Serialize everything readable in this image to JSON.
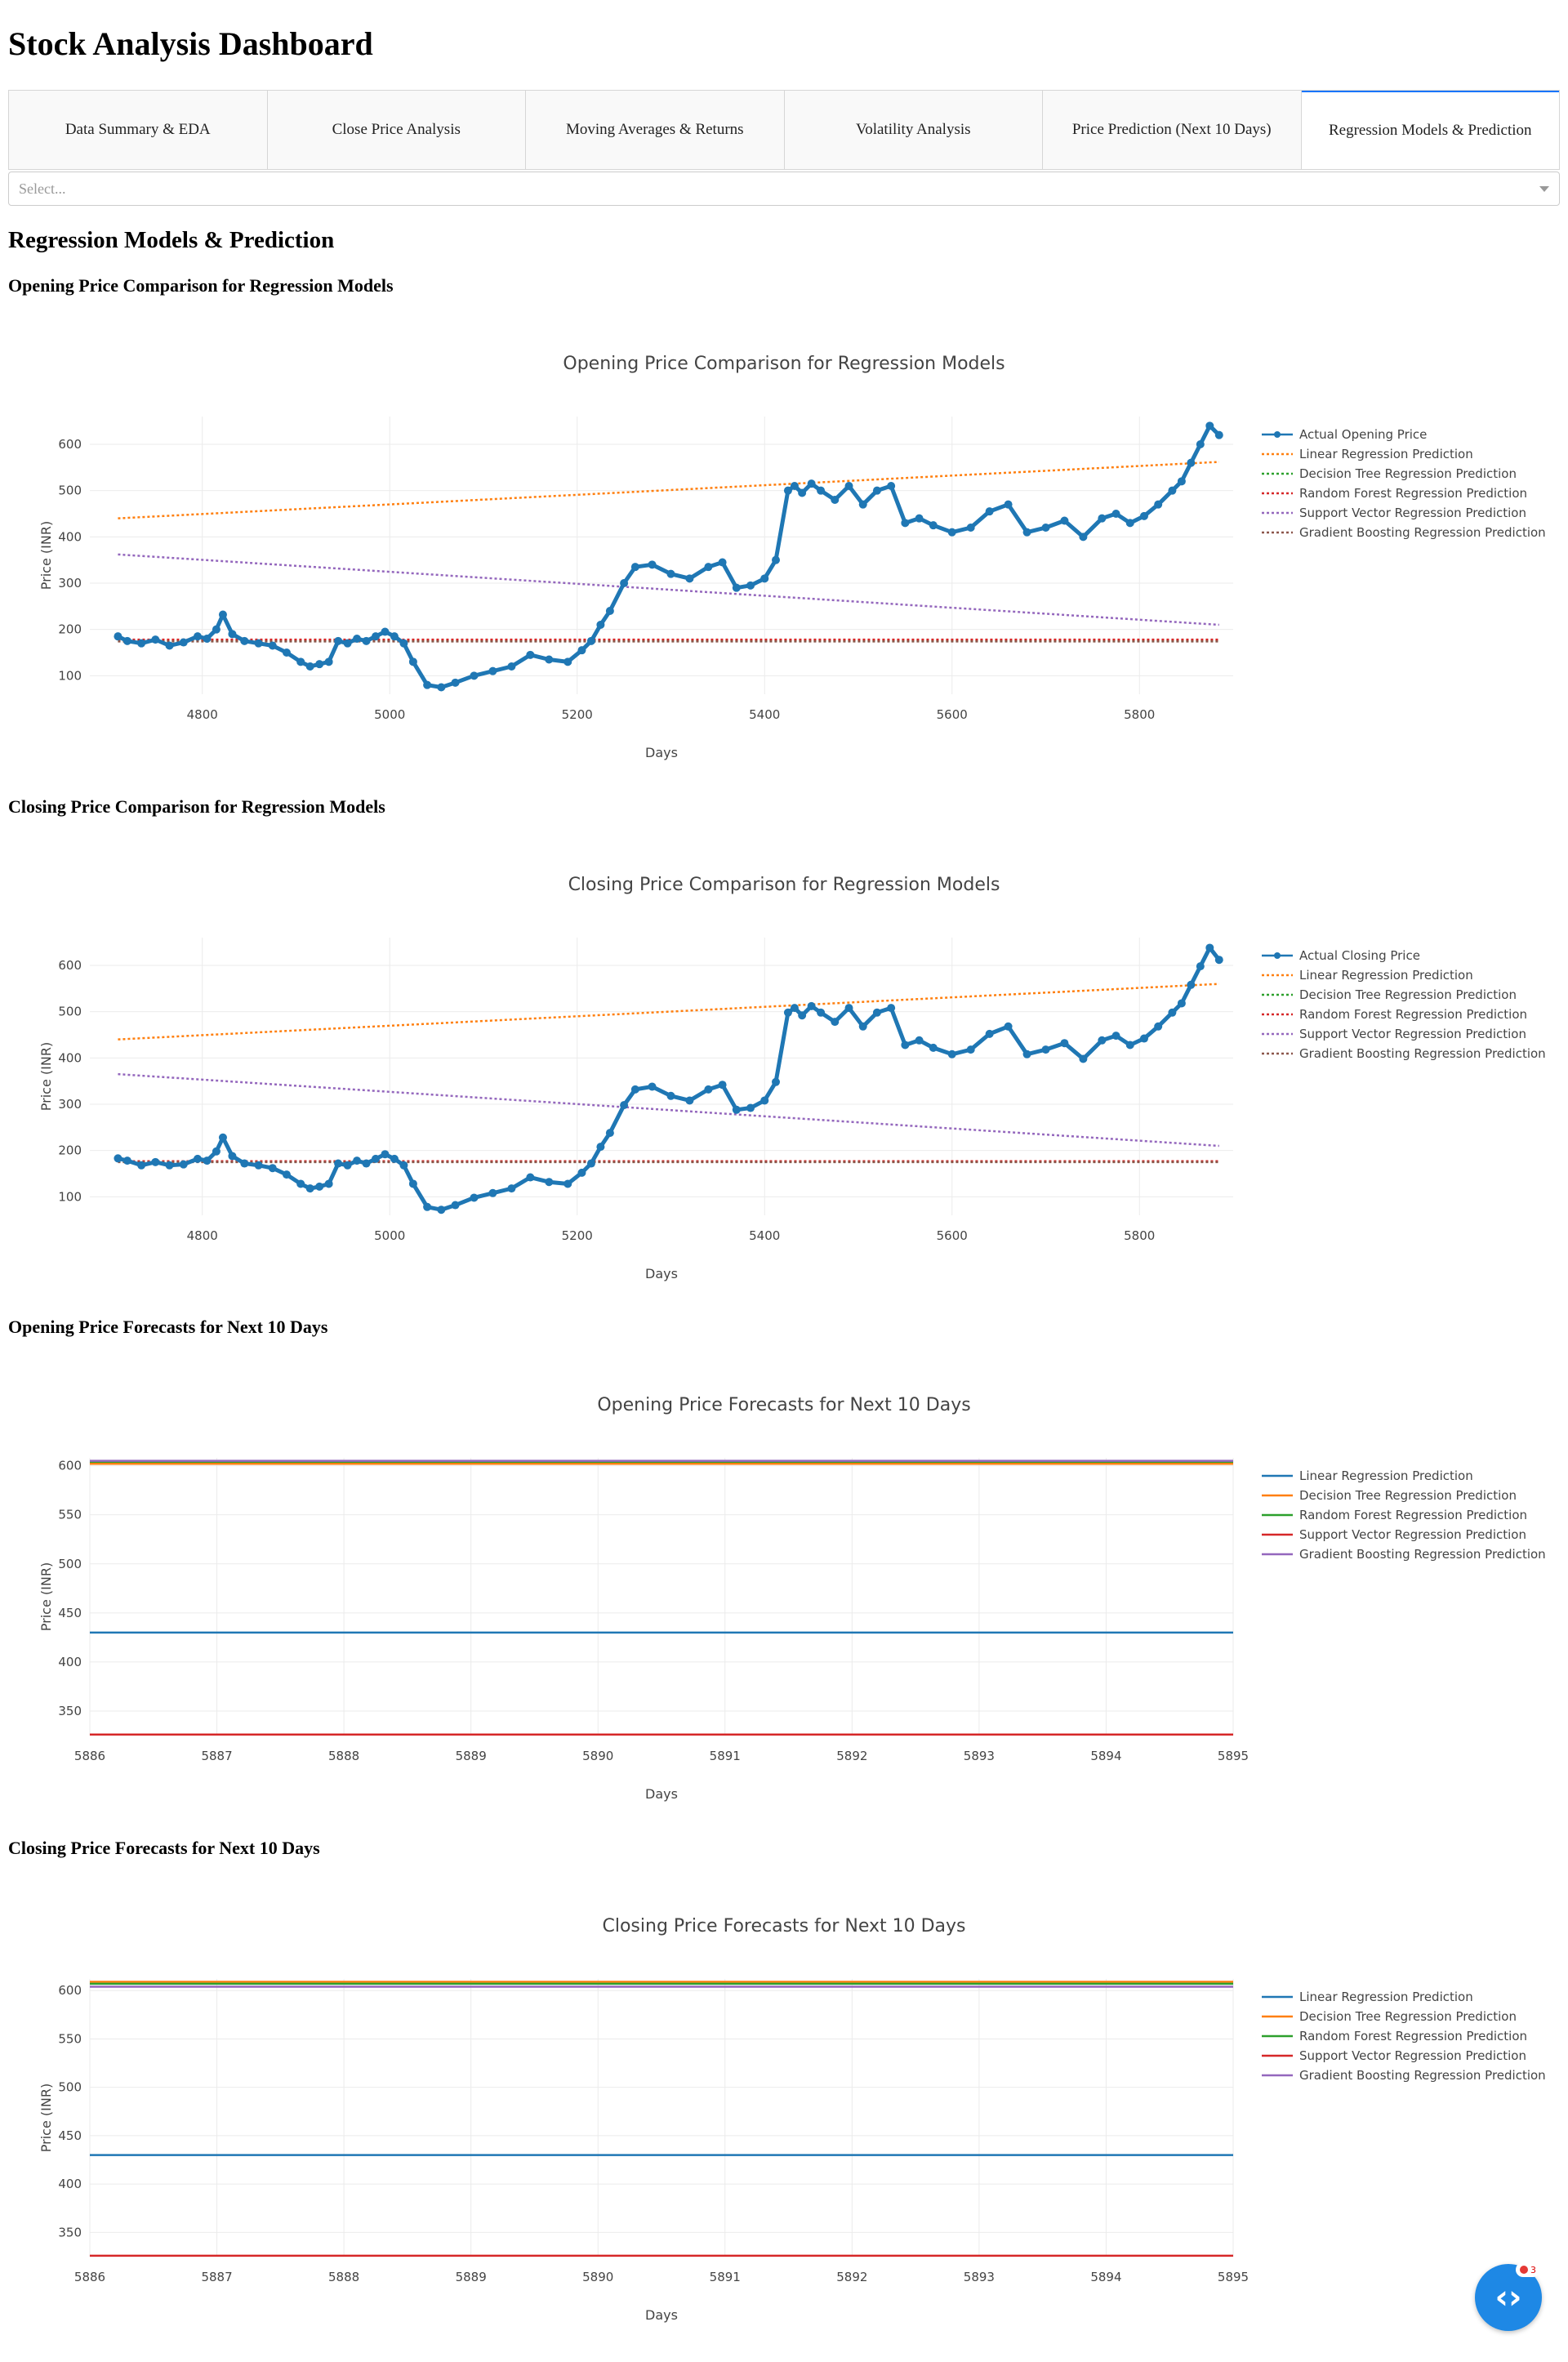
{
  "page": {
    "title": "Stock Analysis Dashboard",
    "tabs": [
      {
        "label": "Data Summary & EDA"
      },
      {
        "label": "Close Price Analysis"
      },
      {
        "label": "Moving Averages & Returns"
      },
      {
        "label": "Volatility Analysis"
      },
      {
        "label": "Price Prediction (Next 10 Days)"
      },
      {
        "label": "Regression Models & Prediction"
      }
    ],
    "selected_tab": 5,
    "dropdown": {
      "placeholder": "Select..."
    },
    "section_title": "Regression Models & Prediction",
    "chart_headings": [
      "Opening Price Comparison for Regression Models",
      "Closing Price Comparison for Regression Models",
      "Opening Price Forecasts for Next 10 Days",
      "Closing Price Forecasts for Next 10 Days"
    ],
    "fab": {
      "icon": "code-brackets-icon",
      "badge": "3"
    }
  },
  "chart_data": [
    {
      "type": "line",
      "title": "Opening Price Comparison for Regression Models",
      "xlabel": "Days",
      "ylabel": "Price (INR)",
      "xlim": [
        4680,
        5900
      ],
      "ylim": [
        60,
        660
      ],
      "xticks": [
        4800,
        5000,
        5200,
        5400,
        5600,
        5800
      ],
      "yticks": [
        100,
        200,
        300,
        400,
        500,
        600
      ],
      "grid": true,
      "legend_position": "top-right",
      "series": [
        {
          "name": "Actual Opening Price",
          "style": "markers+lines",
          "color": "#1f77b4",
          "x": [
            4710,
            4720,
            4735,
            4750,
            4765,
            4780,
            4795,
            4805,
            4815,
            4822,
            4832,
            4845,
            4860,
            4875,
            4890,
            4905,
            4915,
            4925,
            4935,
            4945,
            4955,
            4965,
            4975,
            4985,
            4995,
            5005,
            5015,
            5025,
            5040,
            5055,
            5070,
            5090,
            5110,
            5130,
            5150,
            5170,
            5190,
            5205,
            5215,
            5225,
            5235,
            5250,
            5262,
            5280,
            5300,
            5320,
            5340,
            5355,
            5370,
            5385,
            5400,
            5412,
            5425,
            5432,
            5440,
            5450,
            5460,
            5475,
            5490,
            5505,
            5520,
            5535,
            5550,
            5565,
            5580,
            5600,
            5620,
            5640,
            5660,
            5680,
            5700,
            5720,
            5740,
            5760,
            5775,
            5790,
            5805,
            5820,
            5835,
            5845,
            5855,
            5865,
            5875,
            5885
          ],
          "y": [
            185,
            175,
            170,
            178,
            165,
            172,
            185,
            180,
            200,
            232,
            190,
            175,
            170,
            165,
            150,
            130,
            120,
            125,
            130,
            175,
            170,
            180,
            175,
            185,
            195,
            185,
            170,
            130,
            80,
            75,
            85,
            100,
            110,
            120,
            145,
            135,
            130,
            155,
            175,
            210,
            240,
            300,
            335,
            340,
            320,
            310,
            335,
            345,
            290,
            295,
            310,
            350,
            500,
            510,
            495,
            515,
            500,
            480,
            510,
            470,
            500,
            510,
            430,
            440,
            425,
            410,
            420,
            455,
            470,
            410,
            420,
            435,
            400,
            440,
            450,
            430,
            445,
            470,
            500,
            520,
            560,
            600,
            640,
            620
          ]
        },
        {
          "name": "Linear Regression Prediction",
          "style": "dot",
          "color": "#ff7f0e",
          "x": [
            4710,
            5885
          ],
          "y": [
            440,
            562
          ]
        },
        {
          "name": "Decision Tree Regression Prediction",
          "style": "dot",
          "color": "#2ca02c",
          "x": [
            4710,
            5885
          ],
          "y": [
            176,
            176
          ]
        },
        {
          "name": "Random Forest Regression Prediction",
          "style": "dot",
          "color": "#d62728",
          "x": [
            4710,
            5885
          ],
          "y": [
            178,
            178
          ]
        },
        {
          "name": "Support Vector Regression Prediction",
          "style": "dot",
          "color": "#9467bd",
          "x": [
            4710,
            5885
          ],
          "y": [
            362,
            210
          ]
        },
        {
          "name": "Gradient Boosting Regression Prediction",
          "style": "dot",
          "color": "#8c564b",
          "x": [
            4710,
            5885
          ],
          "y": [
            174,
            174
          ]
        }
      ]
    },
    {
      "type": "line",
      "title": "Closing Price Comparison for Regression Models",
      "xlabel": "Days",
      "ylabel": "Price (INR)",
      "xlim": [
        4680,
        5900
      ],
      "ylim": [
        60,
        660
      ],
      "xticks": [
        4800,
        5000,
        5200,
        5400,
        5600,
        5800
      ],
      "yticks": [
        100,
        200,
        300,
        400,
        500,
        600
      ],
      "grid": true,
      "legend_position": "top-right",
      "series": [
        {
          "name": "Actual Closing Price",
          "style": "markers+lines",
          "color": "#1f77b4",
          "x": [
            4710,
            4720,
            4735,
            4750,
            4765,
            4780,
            4795,
            4805,
            4815,
            4822,
            4832,
            4845,
            4860,
            4875,
            4890,
            4905,
            4915,
            4925,
            4935,
            4945,
            4955,
            4965,
            4975,
            4985,
            4995,
            5005,
            5015,
            5025,
            5040,
            5055,
            5070,
            5090,
            5110,
            5130,
            5150,
            5170,
            5190,
            5205,
            5215,
            5225,
            5235,
            5250,
            5262,
            5280,
            5300,
            5320,
            5340,
            5355,
            5370,
            5385,
            5400,
            5412,
            5425,
            5432,
            5440,
            5450,
            5460,
            5475,
            5490,
            5505,
            5520,
            5535,
            5550,
            5565,
            5580,
            5600,
            5620,
            5640,
            5660,
            5680,
            5700,
            5720,
            5740,
            5760,
            5775,
            5790,
            5805,
            5820,
            5835,
            5845,
            5855,
            5865,
            5875,
            5885
          ],
          "y": [
            183,
            178,
            168,
            175,
            168,
            170,
            182,
            178,
            198,
            228,
            188,
            172,
            168,
            162,
            148,
            128,
            118,
            122,
            128,
            172,
            168,
            178,
            172,
            182,
            192,
            182,
            168,
            128,
            78,
            72,
            82,
            98,
            108,
            118,
            142,
            132,
            128,
            152,
            172,
            208,
            238,
            298,
            332,
            338,
            318,
            308,
            332,
            342,
            288,
            292,
            308,
            348,
            498,
            508,
            492,
            512,
            498,
            478,
            508,
            468,
            498,
            508,
            428,
            438,
            422,
            408,
            418,
            452,
            468,
            408,
            418,
            432,
            398,
            438,
            448,
            428,
            442,
            468,
            498,
            518,
            558,
            598,
            638,
            612
          ]
        },
        {
          "name": "Linear Regression Prediction",
          "style": "dot",
          "color": "#ff7f0e",
          "x": [
            4710,
            5885
          ],
          "y": [
            440,
            560
          ]
        },
        {
          "name": "Decision Tree Regression Prediction",
          "style": "dot",
          "color": "#2ca02c",
          "x": [
            4710,
            5885
          ],
          "y": [
            176,
            176
          ]
        },
        {
          "name": "Random Forest Regression Prediction",
          "style": "dot",
          "color": "#d62728",
          "x": [
            4710,
            5885
          ],
          "y": [
            177,
            177
          ]
        },
        {
          "name": "Support Vector Regression Prediction",
          "style": "dot",
          "color": "#9467bd",
          "x": [
            4710,
            5885
          ],
          "y": [
            365,
            210
          ]
        },
        {
          "name": "Gradient Boosting Regression Prediction",
          "style": "dot",
          "color": "#8c564b",
          "x": [
            4710,
            5885
          ],
          "y": [
            175,
            175
          ]
        }
      ]
    },
    {
      "type": "line",
      "title": "Opening Price Forecasts for Next 10 Days",
      "xlabel": "Days",
      "ylabel": "Price (INR)",
      "xlim": [
        5886,
        5895
      ],
      "ylim": [
        325,
        608
      ],
      "xticks": [
        5886,
        5887,
        5888,
        5889,
        5890,
        5891,
        5892,
        5893,
        5894,
        5895
      ],
      "yticks": [
        350,
        400,
        450,
        500,
        550,
        600
      ],
      "grid": true,
      "legend_position": "top-right",
      "series": [
        {
          "name": "Linear Regression Prediction",
          "style": "solid",
          "color": "#1f77b4",
          "x": [
            5886,
            5895
          ],
          "y": [
            430,
            430
          ]
        },
        {
          "name": "Decision Tree Regression Prediction",
          "style": "solid",
          "color": "#ff7f0e",
          "x": [
            5886,
            5895
          ],
          "y": [
            602,
            602
          ]
        },
        {
          "name": "Random Forest Regression Prediction",
          "style": "solid",
          "color": "#2ca02c",
          "x": [
            5886,
            5895
          ],
          "y": [
            604,
            604
          ]
        },
        {
          "name": "Support Vector Regression Prediction",
          "style": "solid",
          "color": "#d62728",
          "x": [
            5886,
            5895
          ],
          "y": [
            326,
            326
          ]
        },
        {
          "name": "Gradient Boosting Regression Prediction",
          "style": "solid",
          "color": "#9467bd",
          "x": [
            5886,
            5895
          ],
          "y": [
            605,
            605
          ]
        }
      ]
    },
    {
      "type": "line",
      "title": "Closing Price Forecasts for Next 10 Days",
      "xlabel": "Days",
      "ylabel": "Price (INR)",
      "xlim": [
        5886,
        5895
      ],
      "ylim": [
        325,
        612
      ],
      "xticks": [
        5886,
        5887,
        5888,
        5889,
        5890,
        5891,
        5892,
        5893,
        5894,
        5895
      ],
      "yticks": [
        350,
        400,
        450,
        500,
        550,
        600
      ],
      "grid": true,
      "legend_position": "top-right",
      "series": [
        {
          "name": "Linear Regression Prediction",
          "style": "solid",
          "color": "#1f77b4",
          "x": [
            5886,
            5895
          ],
          "y": [
            430,
            430
          ]
        },
        {
          "name": "Decision Tree Regression Prediction",
          "style": "solid",
          "color": "#ff7f0e",
          "x": [
            5886,
            5895
          ],
          "y": [
            609,
            609
          ]
        },
        {
          "name": "Random Forest Regression Prediction",
          "style": "solid",
          "color": "#2ca02c",
          "x": [
            5886,
            5895
          ],
          "y": [
            607,
            607
          ]
        },
        {
          "name": "Support Vector Regression Prediction",
          "style": "solid",
          "color": "#d62728",
          "x": [
            5886,
            5895
          ],
          "y": [
            326,
            326
          ]
        },
        {
          "name": "Gradient Boosting Regression Prediction",
          "style": "solid",
          "color": "#9467bd",
          "x": [
            5886,
            5895
          ],
          "y": [
            604,
            604
          ]
        }
      ]
    }
  ]
}
